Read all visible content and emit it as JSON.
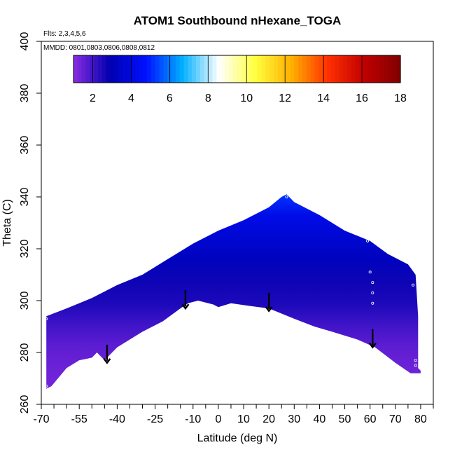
{
  "chart_data": {
    "type": "heatmap",
    "title": "ATOM1 Southbound nHexane_TOGA",
    "subtitle_flights": "Flts: 2,3,4,5,6",
    "annotation_dates": "MMDD: 0801,0803,0806,0808,0812",
    "xlabel": "Latitude (deg N)",
    "ylabel": "Theta (C)",
    "xlim": [
      -70,
      85
    ],
    "ylim": [
      260,
      400
    ],
    "x_ticks": [
      -70,
      -55,
      -40,
      -25,
      -10,
      0,
      10,
      20,
      30,
      40,
      50,
      60,
      70,
      80
    ],
    "x_tick_labels": [
      "-70",
      "-55",
      "-40",
      "-25",
      "-10",
      "0",
      "10",
      "20",
      "30",
      "40",
      "50",
      "60",
      "70",
      "80"
    ],
    "x_minor_ticks": [
      -65,
      -60,
      -50,
      -45,
      -35,
      -30,
      -20,
      -15,
      -5,
      5,
      15,
      25,
      35,
      45,
      55,
      65,
      75,
      85
    ],
    "y_ticks": [
      260,
      280,
      300,
      320,
      340,
      360,
      380,
      400
    ],
    "y_tick_labels": [
      "260",
      "280",
      "300",
      "320",
      "340",
      "360",
      "380",
      "400"
    ],
    "colorbar": {
      "min": 1,
      "max": 18,
      "ticks": [
        2,
        4,
        6,
        8,
        10,
        12,
        14,
        16,
        18
      ],
      "tick_labels": [
        "2",
        "4",
        "6",
        "8",
        "10",
        "12",
        "14",
        "16",
        "18"
      ],
      "colors": [
        "#8a2be2",
        "#0000b0",
        "#0010ff",
        "#00b0ff",
        "#ffffff",
        "#ffff40",
        "#ffb000",
        "#ff3000",
        "#c00000",
        "#800000"
      ]
    },
    "field": {
      "upper_boundary": [
        {
          "lat": -68,
          "theta": 294
        },
        {
          "lat": -60,
          "theta": 297
        },
        {
          "lat": -50,
          "theta": 301
        },
        {
          "lat": -40,
          "theta": 306
        },
        {
          "lat": -30,
          "theta": 310
        },
        {
          "lat": -20,
          "theta": 316
        },
        {
          "lat": -10,
          "theta": 322
        },
        {
          "lat": 0,
          "theta": 327
        },
        {
          "lat": 10,
          "theta": 331
        },
        {
          "lat": 20,
          "theta": 336
        },
        {
          "lat": 25,
          "theta": 340
        },
        {
          "lat": 27,
          "theta": 341
        },
        {
          "lat": 30,
          "theta": 338
        },
        {
          "lat": 40,
          "theta": 333
        },
        {
          "lat": 50,
          "theta": 327
        },
        {
          "lat": 60,
          "theta": 323
        },
        {
          "lat": 67,
          "theta": 318
        },
        {
          "lat": 75,
          "theta": 314
        },
        {
          "lat": 78,
          "theta": 310
        },
        {
          "lat": 79,
          "theta": 294
        },
        {
          "lat": 79,
          "theta": 274
        },
        {
          "lat": 80,
          "theta": 273
        }
      ],
      "lower_boundary": [
        {
          "lat": 80,
          "theta": 272
        },
        {
          "lat": 76,
          "theta": 272
        },
        {
          "lat": 70,
          "theta": 276
        },
        {
          "lat": 62,
          "theta": 282
        },
        {
          "lat": 55,
          "theta": 285
        },
        {
          "lat": 45,
          "theta": 288
        },
        {
          "lat": 38,
          "theta": 290
        },
        {
          "lat": 30,
          "theta": 293
        },
        {
          "lat": 20,
          "theta": 297
        },
        {
          "lat": 12,
          "theta": 298
        },
        {
          "lat": 5,
          "theta": 299
        },
        {
          "lat": 0,
          "theta": 297.5
        },
        {
          "lat": -2,
          "theta": 298.5
        },
        {
          "lat": -8,
          "theta": 300
        },
        {
          "lat": -12,
          "theta": 299
        },
        {
          "lat": -15,
          "theta": 297
        },
        {
          "lat": -22,
          "theta": 292
        },
        {
          "lat": -30,
          "theta": 288
        },
        {
          "lat": -40,
          "theta": 282
        },
        {
          "lat": -45,
          "theta": 277
        },
        {
          "lat": -48,
          "theta": 280
        },
        {
          "lat": -50,
          "theta": 278
        },
        {
          "lat": -55,
          "theta": 277
        },
        {
          "lat": -60,
          "theta": 274
        },
        {
          "lat": -66,
          "theta": 267
        },
        {
          "lat": -68,
          "theta": 266
        }
      ],
      "value_by_theta": [
        {
          "theta": 265,
          "value": 1.3
        },
        {
          "theta": 285,
          "value": 1.4
        },
        {
          "theta": 293,
          "value": 1.6
        },
        {
          "theta": 300,
          "value": 2.0
        },
        {
          "theta": 306,
          "value": 2.5
        },
        {
          "theta": 312,
          "value": 2.7
        },
        {
          "theta": 318,
          "value": 3.2
        },
        {
          "theta": 326,
          "value": 3.7
        },
        {
          "theta": 334,
          "value": 4.2
        },
        {
          "theta": 341,
          "value": 5.2
        }
      ]
    },
    "sample_points": [
      {
        "lat": -68,
        "theta": 293
      },
      {
        "lat": -68,
        "theta": 267
      },
      {
        "lat": 27,
        "theta": 340
      },
      {
        "lat": 59,
        "theta": 325
      },
      {
        "lat": 59,
        "theta": 323
      },
      {
        "lat": 60,
        "theta": 311
      },
      {
        "lat": 61,
        "theta": 307
      },
      {
        "lat": 61,
        "theta": 303
      },
      {
        "lat": 61,
        "theta": 299
      },
      {
        "lat": 77,
        "theta": 314
      },
      {
        "lat": 77,
        "theta": 306
      },
      {
        "lat": 78,
        "theta": 277
      },
      {
        "lat": 78,
        "theta": 275
      }
    ],
    "arrows": [
      {
        "lat": -44,
        "theta_top": 283,
        "theta_tip": 276
      },
      {
        "lat": -13,
        "theta_top": 304,
        "theta_tip": 297
      },
      {
        "lat": 20,
        "theta_top": 303,
        "theta_tip": 296
      },
      {
        "lat": 61,
        "theta_top": 289,
        "theta_tip": 282
      }
    ]
  }
}
